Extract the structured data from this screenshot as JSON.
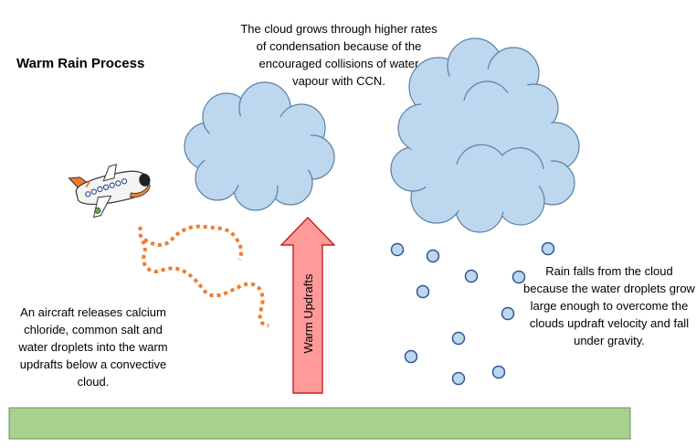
{
  "title": "Warm Rain Process",
  "captions": {
    "top": "The cloud grows through higher rates of condensation because of the encouraged collisions of water vapour with CCN.",
    "left": "An aircraft releases calcium chloride, common salt and water droplets into the warm updrafts below a convective cloud.",
    "right": "Rain falls from the cloud because the water droplets grow large enough to overcome the clouds updraft velocity and fall under gravity."
  },
  "arrow_label": "Warm Updrafts",
  "colors": {
    "cloud_fill": "#bdd7ee",
    "cloud_stroke": "#5b7fa6",
    "arrow_fill": "#ff9a9a",
    "arrow_stroke": "#c00000",
    "ground_fill": "#a9d18e",
    "ground_stroke": "#6e8f57",
    "spray": "#ed7d31",
    "raindrop_fill": "#bdd7ee",
    "raindrop_stroke": "#2f5597"
  }
}
